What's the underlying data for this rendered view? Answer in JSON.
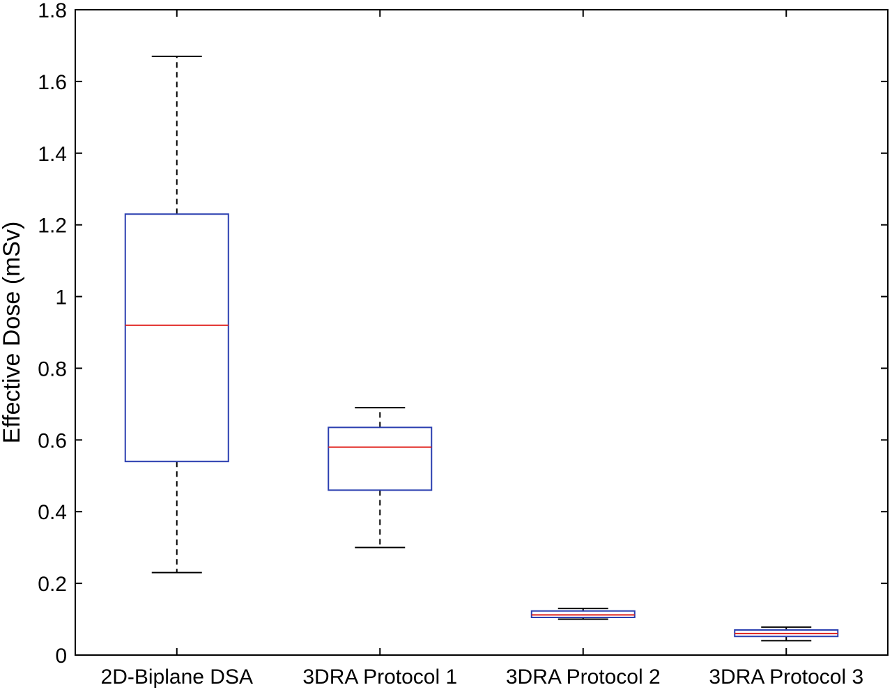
{
  "chart_data": {
    "type": "box",
    "ylabel": "Effective Dose (mSv)",
    "ylim": [
      0,
      1.8
    ],
    "yticks": [
      0,
      0.2,
      0.4,
      0.6,
      0.8,
      1,
      1.2,
      1.4,
      1.6,
      1.8
    ],
    "ytick_labels": [
      "0",
      "0.2",
      "0.4",
      "0.6",
      "0.8",
      "1",
      "1.2",
      "1.4",
      "1.6",
      "1.8"
    ],
    "categories": [
      "2D-Biplane DSA",
      "3DRA Protocol 1",
      "3DRA Protocol 2",
      "3DRA Protocol 3"
    ],
    "boxes": [
      {
        "category": "2D-Biplane DSA",
        "min": 0.23,
        "q1": 0.54,
        "median": 0.92,
        "q3": 1.23,
        "max": 1.67
      },
      {
        "category": "3DRA Protocol 1",
        "min": 0.3,
        "q1": 0.46,
        "median": 0.58,
        "q3": 0.635,
        "max": 0.69
      },
      {
        "category": "3DRA Protocol 2",
        "min": 0.1,
        "q1": 0.105,
        "median": 0.112,
        "q3": 0.123,
        "max": 0.13
      },
      {
        "category": "3DRA Protocol 3",
        "min": 0.04,
        "q1": 0.052,
        "median": 0.06,
        "q3": 0.07,
        "max": 0.078
      }
    ],
    "grid": false,
    "colors": {
      "box": "#2b3fb0",
      "median": "#e0201b",
      "whisker": "#000000",
      "axes": "#000000"
    }
  }
}
